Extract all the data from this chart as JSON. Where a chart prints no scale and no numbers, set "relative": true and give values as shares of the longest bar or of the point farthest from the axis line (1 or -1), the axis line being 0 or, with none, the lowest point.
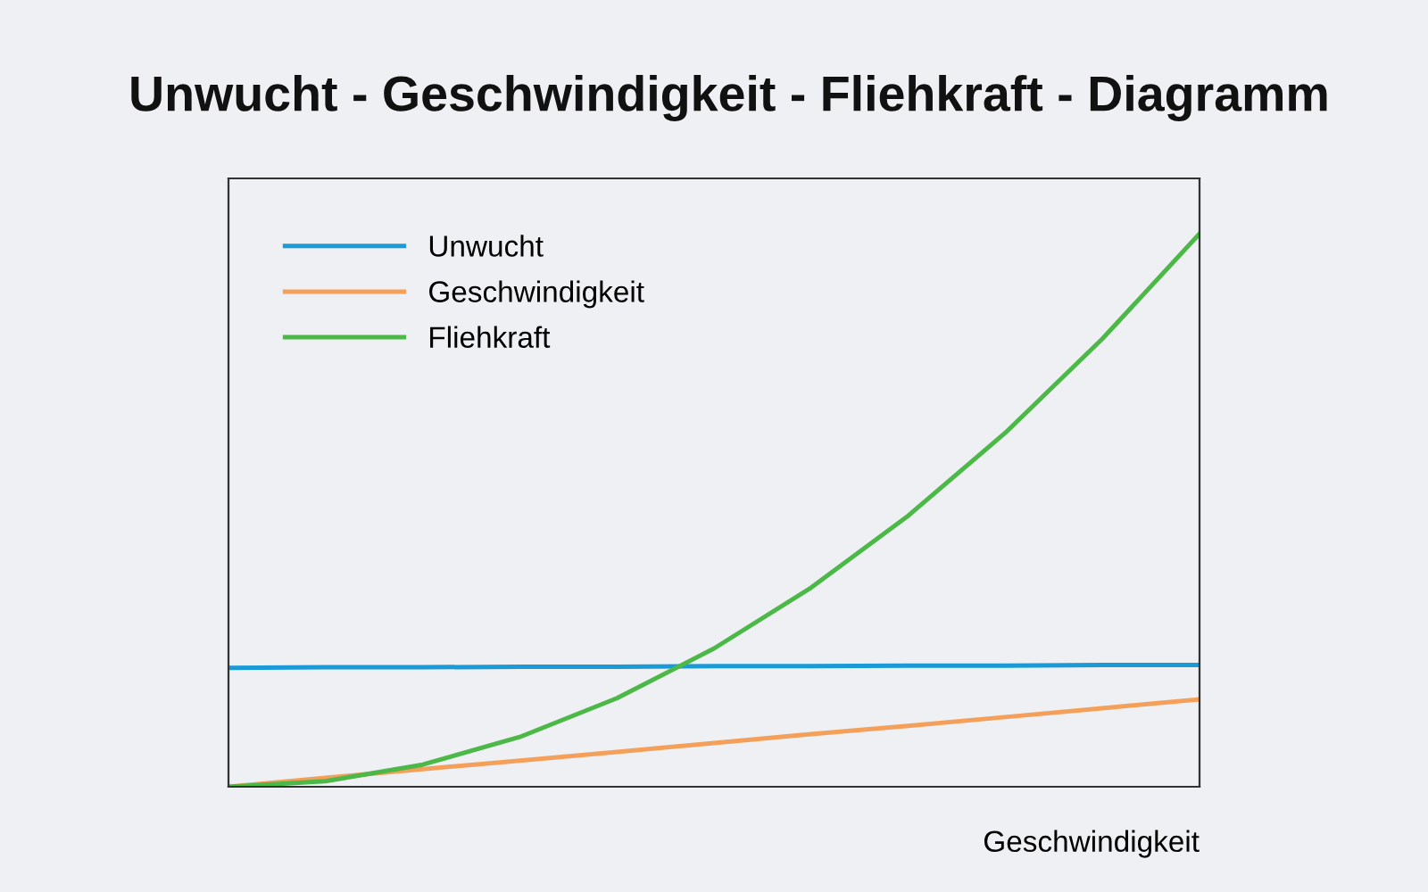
{
  "chart_data": {
    "type": "line",
    "title": "Unwucht - Geschwindigkeit - Fliehkraft - Diagramm",
    "xlabel": "Geschwindigkeit",
    "relative": true,
    "categories": [
      null,
      null,
      null,
      null,
      null,
      null,
      null,
      null,
      null,
      null,
      null
    ],
    "series": [
      {
        "name": "Unwucht",
        "color": "#1a9ad6",
        "values": [
          0.215,
          0.216,
          0.216,
          0.217,
          0.217,
          0.218,
          0.218,
          0.219,
          0.219,
          0.22,
          0.22
        ]
      },
      {
        "name": "Geschwindigkeit",
        "color": "#f4a05a",
        "values": [
          0,
          0.016,
          0.032,
          0.047,
          0.063,
          0.079,
          0.095,
          0.11,
          0.126,
          0.142,
          0.158
        ]
      },
      {
        "name": "Fliehkraft",
        "color": "#4cb848",
        "values": [
          0,
          0.01,
          0.04,
          0.09,
          0.16,
          0.25,
          0.36,
          0.49,
          0.64,
          0.81,
          1
        ]
      }
    ],
    "legend": "top left",
    "grid": false,
    "marker": "none",
    "line_style": "solid"
  }
}
